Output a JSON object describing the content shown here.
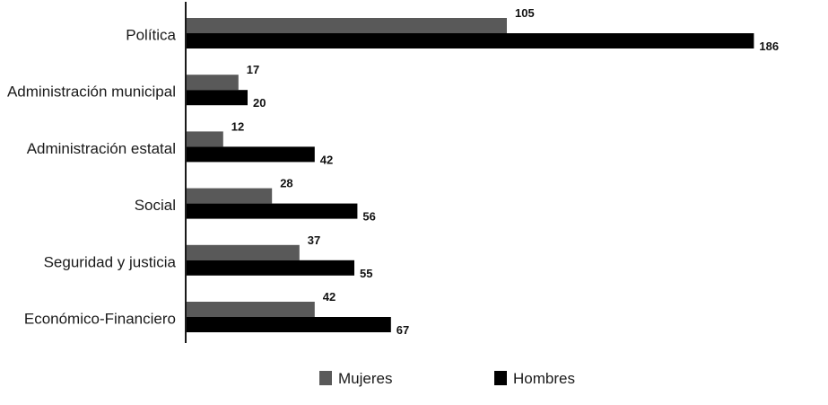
{
  "chart_data": {
    "type": "bar",
    "orientation": "horizontal",
    "categories": [
      "Política",
      "Administración municipal",
      "Administración estatal",
      "Social",
      "Seguridad y justicia",
      "Económico-Financiero"
    ],
    "series": [
      {
        "name": "Mujeres",
        "color": "#595959",
        "values": [
          105,
          17,
          12,
          28,
          37,
          42
        ]
      },
      {
        "name": "Hombres",
        "color": "#000000",
        "values": [
          186,
          20,
          42,
          56,
          55,
          67
        ]
      }
    ],
    "title": "",
    "xlabel": "",
    "ylabel": "",
    "xlim": [
      0,
      186
    ],
    "grid": false,
    "data_labels": true,
    "legend_position": "bottom-center"
  }
}
